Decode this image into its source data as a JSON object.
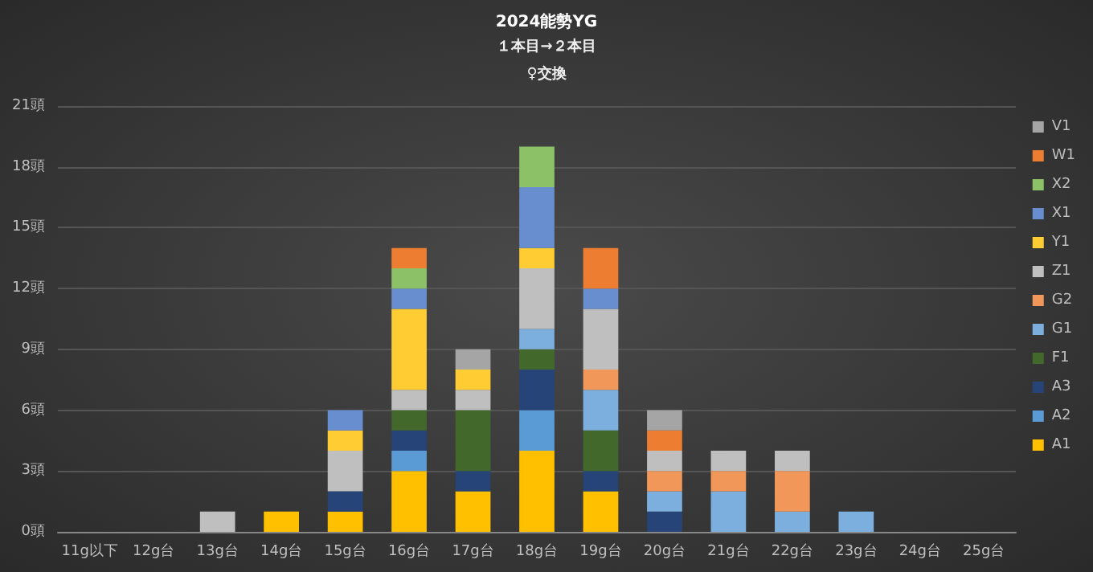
{
  "chart_data": {
    "type": "bar",
    "stacked": true,
    "title": "2024能勢YG",
    "subtitle": "１本目→２本目",
    "annotations": [
      "♀交換"
    ],
    "categories": [
      "11g以下",
      "12g台",
      "13g台",
      "14g台",
      "15g台",
      "16g台",
      "17g台",
      "18g台",
      "19g台",
      "20g台",
      "21g台",
      "22g台",
      "23g台",
      "24g台",
      "25g台"
    ],
    "ylim": [
      0,
      21
    ],
    "yticks": [
      {
        "value": 0,
        "label": "0頭"
      },
      {
        "value": 3,
        "label": "3頭"
      },
      {
        "value": 6,
        "label": "6頭"
      },
      {
        "value": 9,
        "label": "9頭"
      },
      {
        "value": 12,
        "label": "12頭"
      },
      {
        "value": 15,
        "label": "15頭"
      },
      {
        "value": 18,
        "label": "18頭"
      },
      {
        "value": 21,
        "label": "21頭"
      }
    ],
    "grid": "y",
    "legend": "right",
    "series": [
      {
        "name": "A1",
        "color": "#ffc000",
        "values": [
          null,
          null,
          null,
          1,
          1,
          3,
          2,
          4,
          2,
          null,
          null,
          null,
          null,
          null,
          null
        ]
      },
      {
        "name": "A2",
        "color": "#5b9bd5",
        "values": [
          null,
          null,
          null,
          null,
          null,
          1,
          null,
          2,
          null,
          null,
          null,
          null,
          null,
          null,
          null
        ]
      },
      {
        "name": "A3",
        "color": "#264478",
        "values": [
          null,
          null,
          null,
          null,
          1,
          1,
          1,
          2,
          1,
          1,
          null,
          null,
          null,
          null,
          null
        ]
      },
      {
        "name": "F1",
        "color": "#43682b",
        "values": [
          null,
          null,
          null,
          null,
          null,
          1,
          3,
          1,
          2,
          null,
          null,
          null,
          null,
          null,
          null
        ]
      },
      {
        "name": "G1",
        "color": "#7cafdd",
        "values": [
          null,
          null,
          null,
          null,
          null,
          null,
          null,
          1,
          2,
          1,
          2,
          1,
          1,
          null,
          null
        ]
      },
      {
        "name": "G2",
        "color": "#f1975a",
        "values": [
          null,
          null,
          null,
          null,
          null,
          null,
          null,
          null,
          1,
          1,
          1,
          2,
          null,
          null,
          null
        ]
      },
      {
        "name": "Z1",
        "color": "#bfbfbf",
        "values": [
          null,
          null,
          1,
          null,
          2,
          1,
          1,
          3,
          3,
          1,
          1,
          1,
          null,
          null,
          null
        ]
      },
      {
        "name": "Y1",
        "color": "#ffcd33",
        "values": [
          null,
          null,
          null,
          null,
          1,
          4,
          1,
          1,
          null,
          null,
          null,
          null,
          null,
          null,
          null
        ]
      },
      {
        "name": "X1",
        "color": "#698ed0",
        "values": [
          null,
          null,
          null,
          null,
          1,
          1,
          null,
          3,
          1,
          null,
          null,
          null,
          null,
          null,
          null
        ]
      },
      {
        "name": "X2",
        "color": "#8cc168",
        "values": [
          null,
          null,
          null,
          null,
          null,
          1,
          null,
          2,
          null,
          null,
          null,
          null,
          null,
          null,
          null
        ]
      },
      {
        "name": "W1",
        "color": "#ed7d31",
        "values": [
          null,
          null,
          null,
          null,
          null,
          1,
          null,
          null,
          2,
          1,
          null,
          null,
          null,
          null,
          null
        ]
      },
      {
        "name": "V1",
        "color": "#a5a5a5",
        "values": [
          null,
          null,
          null,
          null,
          null,
          null,
          1,
          null,
          null,
          1,
          null,
          null,
          null,
          null,
          null
        ]
      }
    ]
  }
}
